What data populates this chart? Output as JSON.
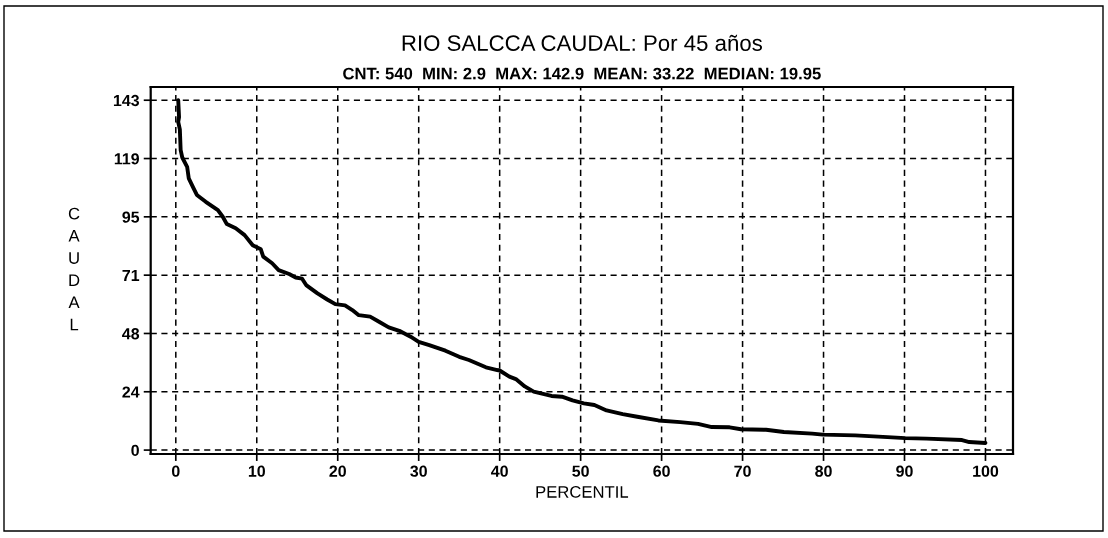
{
  "chart_data": {
    "type": "line",
    "title": "RIO SALCCA CAUDAL: Por 45 años",
    "subtitle": "CNT: 540  MIN: 2.9  MAX: 142.9  MEAN: 33.22  MEDIAN: 19.95",
    "xlabel": "PERCENTIL",
    "ylabel": "CAUDAL",
    "xlim": [
      -3.1,
      103.4
    ],
    "ylim": [
      -1.6,
      148.3
    ],
    "xticks": [
      0,
      10,
      20,
      30,
      40,
      50,
      60,
      70,
      80,
      90,
      100
    ],
    "yticks": [
      0,
      {
        "value": 23.82,
        "label": "24"
      },
      {
        "value": 47.63,
        "label": "48"
      },
      {
        "value": 71.45,
        "label": "71"
      },
      {
        "value": 95.27,
        "label": "95"
      },
      {
        "value": 119.08,
        "label": "119"
      },
      {
        "value": 142.9,
        "label": "143"
      }
    ],
    "grid": true,
    "marker": "none",
    "line_style": "solid",
    "x": [
      0.3,
      0.4,
      0.3,
      0.5,
      0.6,
      0.8,
      1.4,
      1.6,
      2.2,
      2.6,
      3.7,
      5.2,
      5.8,
      6.3,
      7.4,
      8.5,
      9.5,
      10.5,
      10.8,
      11.9,
      12.7,
      14.0,
      14.8,
      15.6,
      16.1,
      17.5,
      18.7,
      19.7,
      20.9,
      21.8,
      22.6,
      24.0,
      25.1,
      26.3,
      27.6,
      29.0,
      30.0,
      31.3,
      33.3,
      35.0,
      36.2,
      38.3,
      39.7,
      40.0,
      41.2,
      42.0,
      43.1,
      44.2,
      46.4,
      47.7,
      49.0,
      50.4,
      51.7,
      53.2,
      55.2,
      57.0,
      59.6,
      62.3,
      64.5,
      66.2,
      68.4,
      69.8,
      72.9,
      75.1,
      78.6,
      79.9,
      83.9,
      87.9,
      90.1,
      92.7,
      97.1,
      98.0,
      100
    ],
    "series": [
      {
        "color": "#000000",
        "values": [
          142.9,
          136,
          134,
          131,
          122.5,
          119.5,
          115.7,
          111,
          106.9,
          104.2,
          101.4,
          98,
          95.3,
          92.3,
          90.6,
          87.8,
          83.7,
          82,
          79,
          76.3,
          73.5,
          71.9,
          70.5,
          70,
          67.4,
          64,
          61.5,
          59.6,
          59.1,
          57.2,
          55.1,
          54.5,
          52.4,
          50.1,
          48.7,
          46.3,
          44.2,
          42.9,
          40.6,
          38.1,
          36.8,
          33.8,
          32.7,
          32.5,
          30,
          29,
          26,
          23.9,
          22.1,
          21.8,
          20.3,
          19.1,
          18.4,
          16.2,
          14.7,
          13.6,
          12.1,
          11.4,
          10.7,
          9.4,
          9.3,
          8.5,
          8.3,
          7.4,
          6.7,
          6.3,
          6.0,
          5.3,
          4.9,
          4.7,
          4.1,
          3.3,
          2.9
        ]
      }
    ]
  }
}
